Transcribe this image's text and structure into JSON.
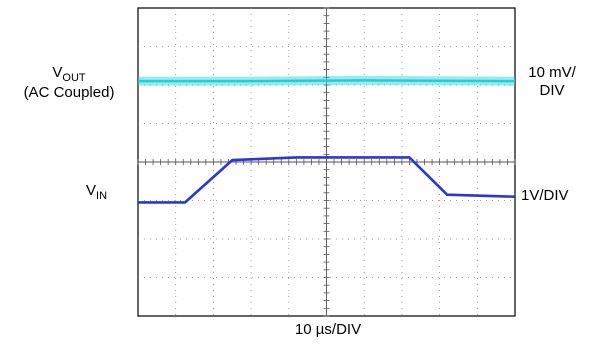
{
  "chart_data": {
    "type": "line",
    "xlabel": "10 µs/DIV",
    "grid": true,
    "divisions": {
      "x": 10,
      "y": 8
    },
    "series": [
      {
        "name_main": "V",
        "name_sub": "OUT",
        "qualifier": "(AC Coupled)",
        "scale": "10 mV/ DIV",
        "scale_line1": "10 mV/",
        "scale_line2": "DIV",
        "color": "#20d0d8",
        "points": [
          [
            0,
            1.9
          ],
          [
            3,
            1.9
          ],
          [
            6,
            1.88
          ],
          [
            10,
            1.9
          ]
        ]
      },
      {
        "name_main": "V",
        "name_sub": "IN",
        "scale": "1V/DIV",
        "color": "#2a36d8",
        "points": [
          [
            0,
            5.05
          ],
          [
            1.25,
            5.05
          ],
          [
            2.5,
            3.95
          ],
          [
            4.2,
            3.88
          ],
          [
            7.2,
            3.88
          ],
          [
            8.2,
            4.85
          ],
          [
            10,
            4.9
          ]
        ]
      }
    ]
  }
}
